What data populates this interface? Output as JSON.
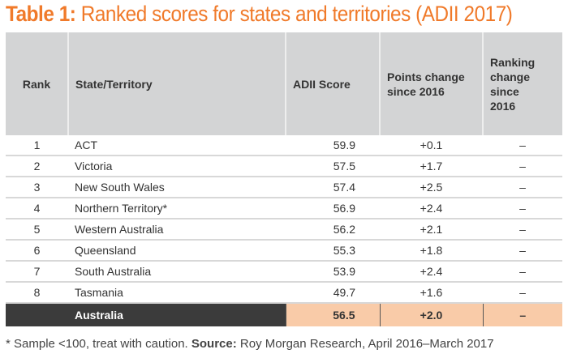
{
  "title": {
    "bold": "Table 1:",
    "rest": " Ranked scores for states and territories (ADII 2017)"
  },
  "headers": [
    "Rank",
    "State/Territory",
    "ADII Score",
    "Points change since 2016",
    "Ranking change since 2016"
  ],
  "rows": [
    [
      "1",
      "ACT",
      "59.9",
      "+0.1",
      "–"
    ],
    [
      "2",
      "Victoria",
      "57.5",
      "+1.7",
      "–"
    ],
    [
      "3",
      "New South Wales",
      "57.4",
      "+2.5",
      "–"
    ],
    [
      "4",
      "Northern Territory*",
      "56.9",
      "+2.4",
      "–"
    ],
    [
      "5",
      "Western Australia",
      "56.2",
      "+2.1",
      "–"
    ],
    [
      "6",
      "Queensland",
      "55.3",
      "+1.8",
      "–"
    ],
    [
      "7",
      "South Australia",
      "53.9",
      "+2.4",
      "–"
    ],
    [
      "8",
      "Tasmania",
      "49.7",
      "+1.6",
      "–"
    ]
  ],
  "total": {
    "label": "Australia",
    "score": "56.5",
    "points": "+2.0",
    "ranking": "–"
  },
  "footnote": {
    "note": "* Sample <100, treat with caution. ",
    "source_label": "Source:",
    "source": " Roy Morgan Research, April 2016–March 2017"
  },
  "colors": {
    "accent": "#f07a2a",
    "header_bg": "#d3d4d5",
    "total_dark": "#3b3b3b",
    "total_highlight": "#f9cba8"
  }
}
